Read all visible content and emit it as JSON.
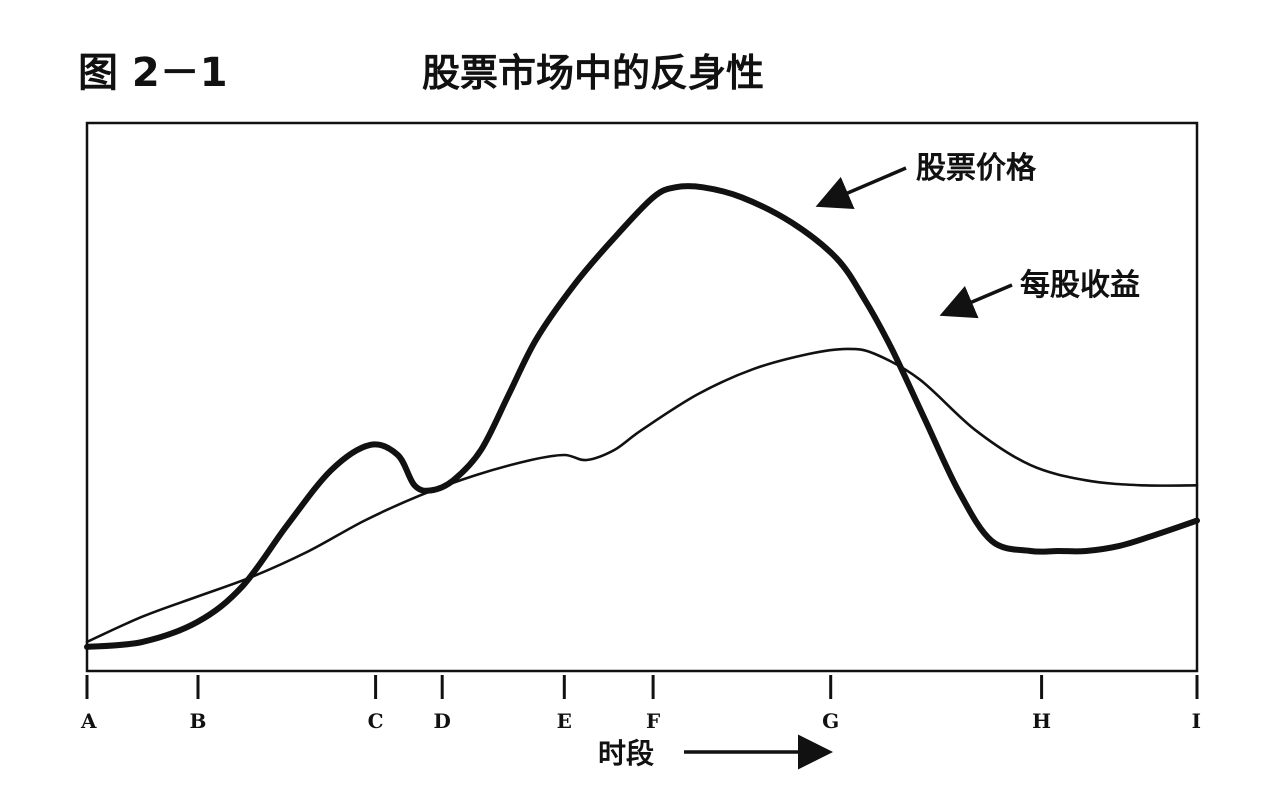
{
  "figure": {
    "number": "图 2－1",
    "title": "股票市场中的反身性"
  },
  "chart_data": {
    "type": "line",
    "title": "股票市场中的反身性",
    "xlabel": "时段",
    "ylabel": "",
    "categories": [
      "A",
      "B",
      "C",
      "D",
      "E",
      "F",
      "G",
      "H",
      "I"
    ],
    "category_x": [
      0,
      1,
      2.6,
      3.2,
      4.3,
      5.1,
      6.7,
      8.6,
      10
    ],
    "xlim": [
      0,
      10
    ],
    "ylim": [
      0,
      100
    ],
    "grid": false,
    "series": [
      {
        "name": "股票价格",
        "emphasis": "thick",
        "x": [
          0,
          0.5,
          1.0,
          1.4,
          1.8,
          2.2,
          2.55,
          2.8,
          2.95,
          3.1,
          3.3,
          3.55,
          3.8,
          4.05,
          4.4,
          4.75,
          5.1,
          5.3,
          5.55,
          5.9,
          6.35,
          6.75,
          7.0,
          7.25,
          7.55,
          7.85,
          8.15,
          8.5,
          8.75,
          9.0,
          9.3,
          9.6,
          10
        ],
        "y": [
          2,
          3,
          7,
          14,
          26,
          37,
          42,
          40,
          34,
          33,
          35,
          41,
          52,
          63,
          74,
          83,
          91,
          93,
          93,
          91,
          86,
          79,
          71,
          61,
          47,
          33,
          23,
          21,
          21,
          21,
          22,
          24,
          27
        ]
      },
      {
        "name": "每股收益",
        "emphasis": "thin",
        "x": [
          0,
          0.5,
          1.0,
          1.5,
          2.0,
          2.5,
          3.0,
          3.5,
          4.0,
          4.3,
          4.5,
          4.75,
          5.0,
          5.5,
          6.0,
          6.5,
          6.85,
          7.1,
          7.5,
          8.0,
          8.5,
          9.0,
          9.5,
          10
        ],
        "y": [
          3,
          8,
          12,
          16,
          21,
          27,
          32,
          36,
          39,
          40,
          39,
          41,
          45,
          52,
          57,
          60,
          61,
          60,
          55,
          45,
          38,
          35,
          34,
          34
        ]
      }
    ],
    "annotations": [
      {
        "text": "股票价格",
        "points_to": "股票价格"
      },
      {
        "text": "每股收益",
        "points_to": "每股收益"
      }
    ],
    "x_axis_arrow": true
  }
}
